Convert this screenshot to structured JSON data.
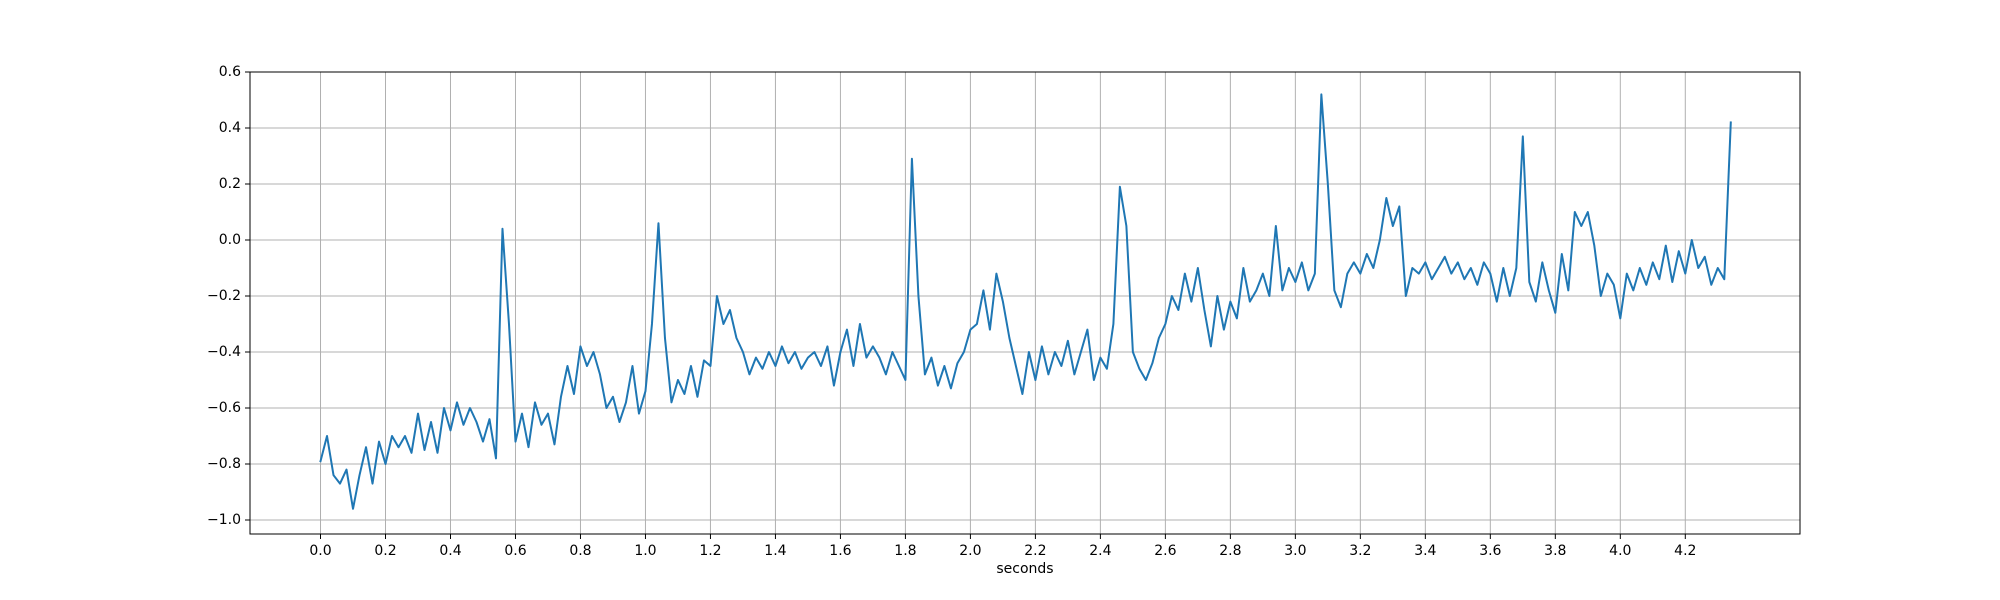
{
  "chart_data": {
    "type": "line",
    "xlabel": "seconds",
    "grid": true,
    "xlim": [
      -0.217,
      4.553
    ],
    "ylim": [
      -1.05,
      0.6
    ],
    "xticks": [
      {
        "value": 0,
        "label": "0.0"
      },
      0.2,
      0.4,
      0.6,
      0.8,
      {
        "value": 1,
        "label": "1.0"
      },
      1.2,
      1.4,
      1.6,
      1.8,
      {
        "value": 2,
        "label": "2.0"
      },
      2.2,
      2.4,
      2.6,
      2.8,
      {
        "value": 3,
        "label": "3.0"
      },
      3.2,
      3.4,
      3.6,
      3.8,
      {
        "value": 4,
        "label": "4.0"
      },
      4.2
    ],
    "yticks": [
      {
        "value": -1,
        "label": "−1.0"
      },
      {
        "value": -0.8,
        "label": "−0.8"
      },
      {
        "value": -0.6,
        "label": "−0.6"
      },
      {
        "value": -0.4,
        "label": "−0.4"
      },
      {
        "value": -0.2,
        "label": "−0.2"
      },
      {
        "value": 0,
        "label": "0.0"
      },
      0.2,
      0.4,
      0.6
    ],
    "series": [
      {
        "color": "#1f77b4",
        "x": [
          0.0,
          0.02,
          0.04,
          0.06,
          0.08,
          0.1,
          0.12,
          0.14,
          0.16,
          0.18,
          0.2,
          0.22,
          0.24,
          0.26,
          0.28,
          0.3,
          0.32,
          0.34,
          0.36,
          0.38,
          0.4,
          0.42,
          0.44,
          0.46,
          0.48,
          0.5,
          0.52,
          0.54,
          0.56,
          0.58,
          0.6,
          0.62,
          0.64,
          0.66,
          0.68,
          0.7,
          0.72,
          0.74,
          0.76,
          0.78,
          0.8,
          0.82,
          0.84,
          0.86,
          0.88,
          0.9,
          0.92,
          0.94,
          0.96,
          0.98,
          1.0,
          1.02,
          1.04,
          1.06,
          1.08,
          1.1,
          1.12,
          1.14,
          1.16,
          1.18,
          1.2,
          1.22,
          1.24,
          1.26,
          1.28,
          1.3,
          1.32,
          1.34,
          1.36,
          1.38,
          1.4,
          1.42,
          1.44,
          1.46,
          1.48,
          1.5,
          1.52,
          1.54,
          1.56,
          1.58,
          1.6,
          1.62,
          1.64,
          1.66,
          1.68,
          1.7,
          1.72,
          1.74,
          1.76,
          1.78,
          1.8,
          1.82,
          1.84,
          1.86,
          1.88,
          1.9,
          1.92,
          1.94,
          1.96,
          1.98,
          2.0,
          2.02,
          2.04,
          2.06,
          2.08,
          2.1,
          2.12,
          2.14,
          2.16,
          2.18,
          2.2,
          2.22,
          2.24,
          2.26,
          2.28,
          2.3,
          2.32,
          2.34,
          2.36,
          2.38,
          2.4,
          2.42,
          2.44,
          2.46,
          2.48,
          2.5,
          2.52,
          2.54,
          2.56,
          2.58,
          2.6,
          2.62,
          2.64,
          2.66,
          2.68,
          2.7,
          2.72,
          2.74,
          2.76,
          2.78,
          2.8,
          2.82,
          2.84,
          2.86,
          2.88,
          2.9,
          2.92,
          2.94,
          2.96,
          2.98,
          3.0,
          3.02,
          3.04,
          3.06,
          3.08,
          3.1,
          3.12,
          3.14,
          3.16,
          3.18,
          3.2,
          3.22,
          3.24,
          3.26,
          3.28,
          3.3,
          3.32,
          3.34,
          3.36,
          3.38,
          3.4,
          3.42,
          3.44,
          3.46,
          3.48,
          3.5,
          3.52,
          3.54,
          3.56,
          3.58,
          3.6,
          3.62,
          3.64,
          3.66,
          3.68,
          3.7,
          3.72,
          3.74,
          3.76,
          3.78,
          3.8,
          3.82,
          3.84,
          3.86,
          3.88,
          3.9,
          3.92,
          3.94,
          3.96,
          3.98,
          4.0,
          4.02,
          4.04,
          4.06,
          4.08,
          4.1,
          4.12,
          4.14,
          4.16,
          4.18,
          4.2,
          4.22,
          4.24,
          4.26,
          4.28,
          4.3,
          4.32,
          4.34
        ],
        "values": [
          -0.79,
          -0.7,
          -0.84,
          -0.87,
          -0.82,
          -0.96,
          -0.84,
          -0.74,
          -0.87,
          -0.72,
          -0.8,
          -0.7,
          -0.74,
          -0.7,
          -0.76,
          -0.62,
          -0.75,
          -0.65,
          -0.76,
          -0.6,
          -0.68,
          -0.58,
          -0.66,
          -0.6,
          -0.65,
          -0.72,
          -0.64,
          -0.78,
          0.04,
          -0.3,
          -0.72,
          -0.62,
          -0.74,
          -0.58,
          -0.66,
          -0.62,
          -0.73,
          -0.56,
          -0.45,
          -0.55,
          -0.38,
          -0.45,
          -0.4,
          -0.48,
          -0.6,
          -0.56,
          -0.65,
          -0.58,
          -0.45,
          -0.62,
          -0.54,
          -0.3,
          0.06,
          -0.35,
          -0.58,
          -0.5,
          -0.55,
          -0.45,
          -0.56,
          -0.43,
          -0.45,
          -0.2,
          -0.3,
          -0.25,
          -0.35,
          -0.4,
          -0.48,
          -0.42,
          -0.46,
          -0.4,
          -0.45,
          -0.38,
          -0.44,
          -0.4,
          -0.46,
          -0.42,
          -0.4,
          -0.45,
          -0.38,
          -0.52,
          -0.4,
          -0.32,
          -0.45,
          -0.3,
          -0.42,
          -0.38,
          -0.42,
          -0.48,
          -0.4,
          -0.45,
          -0.5,
          0.29,
          -0.2,
          -0.48,
          -0.42,
          -0.52,
          -0.45,
          -0.53,
          -0.44,
          -0.4,
          -0.32,
          -0.3,
          -0.18,
          -0.32,
          -0.12,
          -0.22,
          -0.35,
          -0.45,
          -0.55,
          -0.4,
          -0.5,
          -0.38,
          -0.48,
          -0.4,
          -0.45,
          -0.36,
          -0.48,
          -0.4,
          -0.32,
          -0.5,
          -0.42,
          -0.46,
          -0.3,
          0.19,
          0.05,
          -0.4,
          -0.46,
          -0.5,
          -0.44,
          -0.35,
          -0.3,
          -0.2,
          -0.25,
          -0.12,
          -0.22,
          -0.1,
          -0.25,
          -0.38,
          -0.2,
          -0.32,
          -0.22,
          -0.28,
          -0.1,
          -0.22,
          -0.18,
          -0.12,
          -0.2,
          0.05,
          -0.18,
          -0.1,
          -0.15,
          -0.08,
          -0.18,
          -0.12,
          0.52,
          0.2,
          -0.18,
          -0.24,
          -0.12,
          -0.08,
          -0.12,
          -0.05,
          -0.1,
          0.0,
          0.15,
          0.05,
          0.12,
          -0.2,
          -0.1,
          -0.12,
          -0.08,
          -0.14,
          -0.1,
          -0.06,
          -0.12,
          -0.08,
          -0.14,
          -0.1,
          -0.16,
          -0.08,
          -0.12,
          -0.22,
          -0.1,
          -0.2,
          -0.1,
          0.37,
          -0.15,
          -0.22,
          -0.08,
          -0.18,
          -0.26,
          -0.05,
          -0.18,
          0.1,
          0.05,
          0.1,
          -0.02,
          -0.2,
          -0.12,
          -0.16,
          -0.28,
          -0.12,
          -0.18,
          -0.1,
          -0.16,
          -0.08,
          -0.14,
          -0.02,
          -0.15,
          -0.04,
          -0.12,
          0.0,
          -0.1,
          -0.06,
          -0.16,
          -0.1,
          -0.14,
          0.42
        ]
      }
    ]
  }
}
